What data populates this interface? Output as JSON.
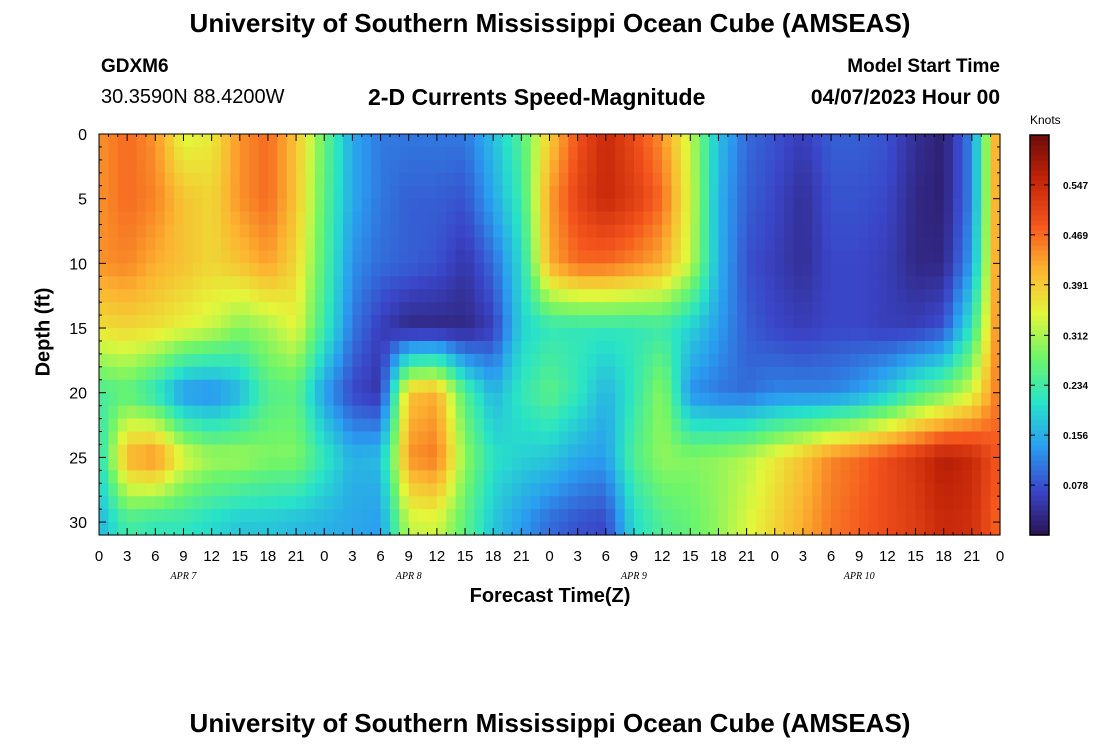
{
  "header": {
    "title": "University of Southern Mississippi Ocean Cube (AMSEAS)",
    "station": "GDXM6",
    "coords": "30.3590N  88.4200W",
    "subtitle": "2-D Currents Speed-Magnitude",
    "model_start_label": "Model Start Time",
    "model_start_value": "04/07/2023 Hour 00"
  },
  "footer": {
    "title": "University of Southern Mississippi Ocean Cube (AMSEAS)"
  },
  "colorbar": {
    "units": "Knots",
    "ticks": [
      "0.078",
      "0.156",
      "0.234",
      "0.312",
      "0.391",
      "0.469",
      "0.547"
    ],
    "range": [
      0,
      0.625
    ],
    "colors": [
      "#2a1250",
      "#3a45c8",
      "#2a9df0",
      "#28e3c8",
      "#6ef56a",
      "#e4f63a",
      "#fcb230",
      "#f4541c",
      "#c32508",
      "#6e0a0a"
    ]
  },
  "chart_data": {
    "type": "heatmap",
    "title": "2-D Currents Speed-Magnitude",
    "xlabel": "Forecast Time(Z)",
    "ylabel": "Depth (ft)",
    "units": "Knots",
    "x_hours_range": [
      0,
      96
    ],
    "x_tick_labels": [
      "0",
      "3",
      "6",
      "9",
      "12",
      "15",
      "18",
      "21",
      "0",
      "3",
      "6",
      "9",
      "12",
      "15",
      "18",
      "21",
      "0",
      "3",
      "6",
      "9",
      "12",
      "15",
      "18",
      "21",
      "0",
      "3",
      "6",
      "9",
      "12",
      "15",
      "18",
      "21",
      "0"
    ],
    "day_labels": [
      "APR 7",
      "APR 8",
      "APR 9",
      "APR 10"
    ],
    "y_depth_range_ft": [
      0,
      31
    ],
    "y_tick_labels": [
      "0",
      "5",
      "10",
      "15",
      "20",
      "25",
      "30"
    ],
    "y_inverted": true,
    "value_range": [
      0,
      0.625
    ],
    "depth_ft": [
      0,
      5,
      10,
      15,
      20,
      25,
      30
    ],
    "hours": [
      0,
      3,
      6,
      9,
      12,
      15,
      18,
      21,
      24,
      27,
      30,
      33,
      36,
      39,
      42,
      45,
      48,
      51,
      54,
      57,
      60,
      63,
      66,
      69,
      72,
      75,
      78,
      81,
      84,
      87,
      90,
      93,
      96
    ],
    "values": [
      [
        0.44,
        0.47,
        0.44,
        0.34,
        0.36,
        0.44,
        0.47,
        0.4,
        0.27,
        0.15,
        0.11,
        0.11,
        0.11,
        0.11,
        0.17,
        0.25,
        0.39,
        0.49,
        0.55,
        0.5,
        0.44,
        0.33,
        0.17,
        0.1,
        0.08,
        0.06,
        0.09,
        0.09,
        0.08,
        0.04,
        0.02,
        0.12,
        0.47
      ],
      [
        0.44,
        0.47,
        0.45,
        0.4,
        0.38,
        0.44,
        0.47,
        0.4,
        0.26,
        0.15,
        0.11,
        0.09,
        0.09,
        0.08,
        0.15,
        0.23,
        0.43,
        0.51,
        0.55,
        0.52,
        0.47,
        0.34,
        0.16,
        0.09,
        0.07,
        0.04,
        0.08,
        0.08,
        0.07,
        0.03,
        0.02,
        0.12,
        0.47
      ],
      [
        0.44,
        0.45,
        0.42,
        0.4,
        0.38,
        0.4,
        0.43,
        0.38,
        0.25,
        0.13,
        0.1,
        0.09,
        0.08,
        0.05,
        0.1,
        0.2,
        0.42,
        0.47,
        0.47,
        0.45,
        0.42,
        0.33,
        0.16,
        0.08,
        0.06,
        0.04,
        0.07,
        0.07,
        0.06,
        0.03,
        0.03,
        0.14,
        0.47
      ],
      [
        0.37,
        0.38,
        0.37,
        0.35,
        0.33,
        0.29,
        0.31,
        0.35,
        0.23,
        0.11,
        0.06,
        0.03,
        0.03,
        0.03,
        0.06,
        0.19,
        0.22,
        0.22,
        0.22,
        0.22,
        0.23,
        0.19,
        0.14,
        0.09,
        0.07,
        0.06,
        0.07,
        0.07,
        0.06,
        0.06,
        0.08,
        0.22,
        0.47
      ],
      [
        0.24,
        0.26,
        0.21,
        0.13,
        0.12,
        0.16,
        0.25,
        0.26,
        0.14,
        0.07,
        0.05,
        0.4,
        0.42,
        0.25,
        0.16,
        0.22,
        0.26,
        0.22,
        0.16,
        0.22,
        0.3,
        0.13,
        0.11,
        0.1,
        0.12,
        0.12,
        0.12,
        0.14,
        0.18,
        0.24,
        0.28,
        0.34,
        0.47
      ],
      [
        0.2,
        0.42,
        0.45,
        0.35,
        0.31,
        0.31,
        0.29,
        0.29,
        0.22,
        0.16,
        0.17,
        0.44,
        0.46,
        0.3,
        0.21,
        0.19,
        0.18,
        0.15,
        0.14,
        0.25,
        0.3,
        0.29,
        0.3,
        0.32,
        0.36,
        0.4,
        0.45,
        0.47,
        0.5,
        0.53,
        0.57,
        0.55,
        0.48
      ],
      [
        0.16,
        0.24,
        0.22,
        0.22,
        0.2,
        0.18,
        0.18,
        0.17,
        0.16,
        0.15,
        0.14,
        0.33,
        0.34,
        0.26,
        0.18,
        0.14,
        0.1,
        0.08,
        0.07,
        0.2,
        0.25,
        0.27,
        0.3,
        0.34,
        0.38,
        0.42,
        0.46,
        0.48,
        0.5,
        0.52,
        0.55,
        0.54,
        0.47
      ]
    ]
  }
}
